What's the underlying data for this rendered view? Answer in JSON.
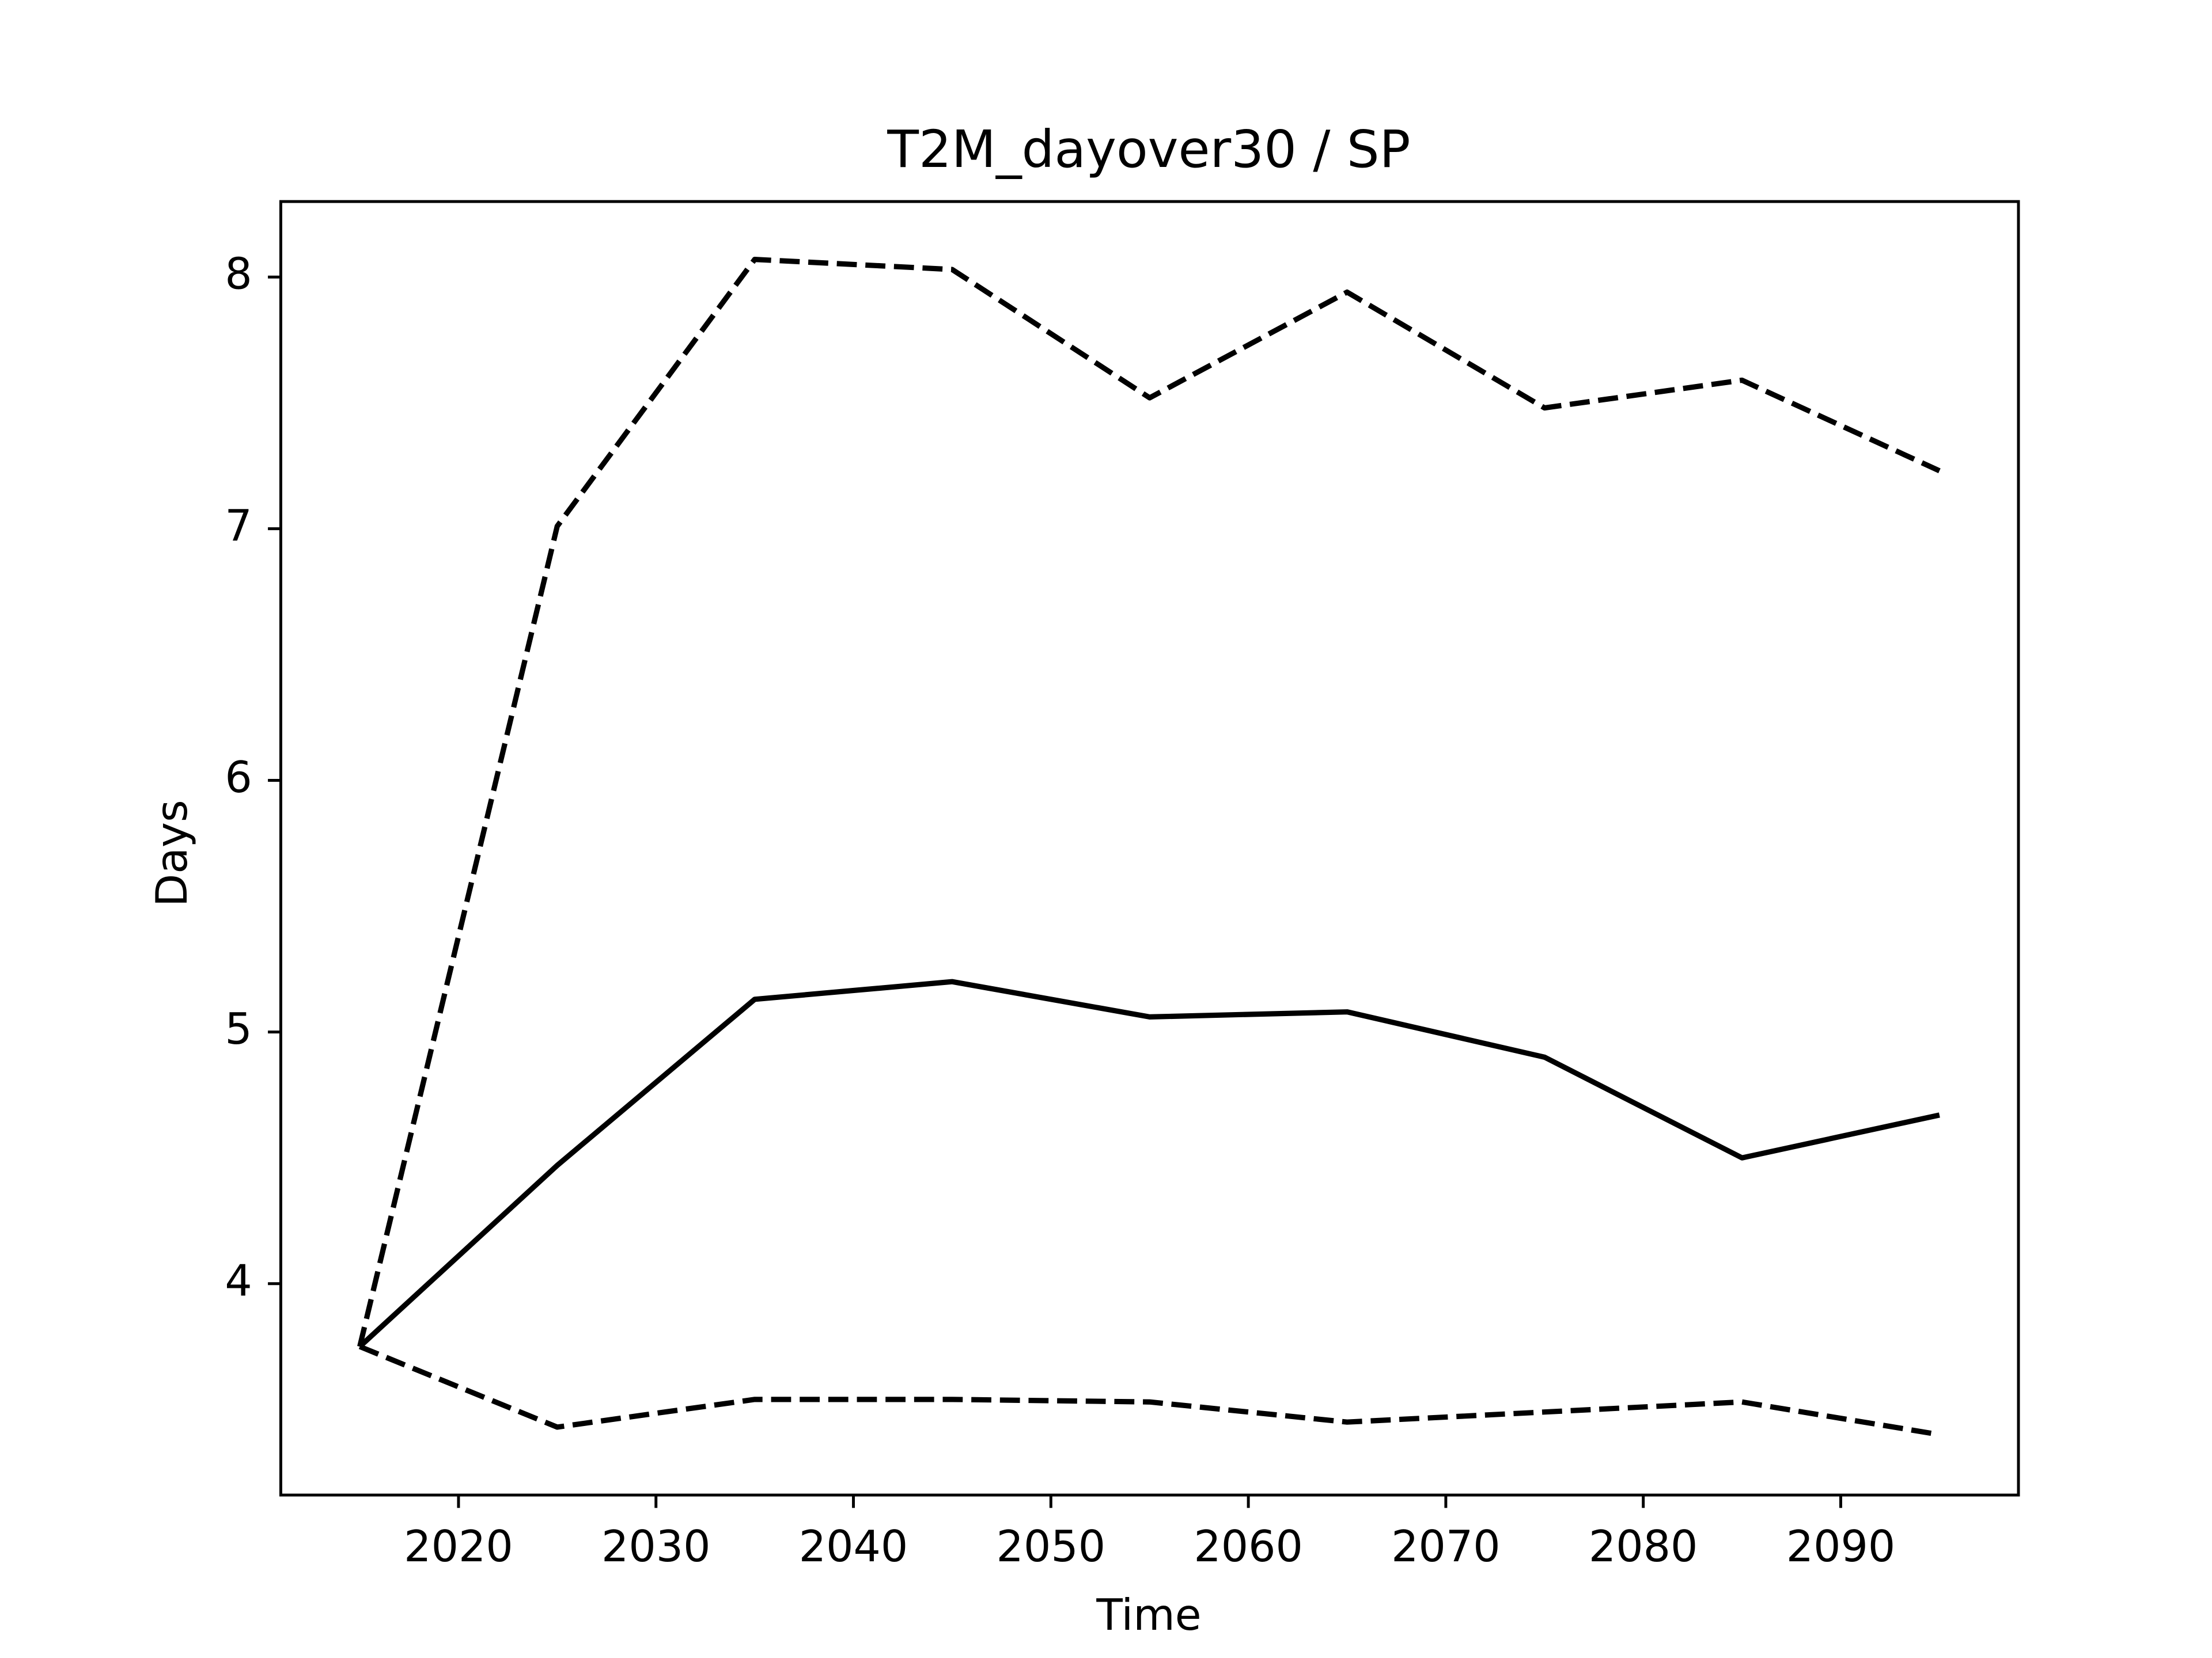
{
  "chart_data": {
    "type": "line",
    "title": "T2M_dayover30 / SP",
    "xlabel": "Time",
    "ylabel": "Days",
    "x": [
      2015,
      2025,
      2035,
      2045,
      2055,
      2065,
      2075,
      2085,
      2095
    ],
    "series": [
      {
        "color": "#000000",
        "dashed": false,
        "values": [
          3.75,
          4.47,
          5.13,
          5.2,
          5.06,
          5.08,
          4.9,
          4.5,
          4.67
        ]
      },
      {
        "color": "#000000",
        "dashed": true,
        "values": [
          3.75,
          7.01,
          8.07,
          8.03,
          7.52,
          7.94,
          7.48,
          7.59,
          7.23
        ]
      },
      {
        "color": "#000000",
        "dashed": true,
        "values": [
          3.75,
          3.43,
          3.54,
          3.54,
          3.53,
          3.45,
          3.49,
          3.53,
          3.4
        ]
      }
    ],
    "xlim": [
      2011,
      2099
    ],
    "ylim": [
      3.16,
      8.3
    ],
    "xticks": [
      2020,
      2030,
      2040,
      2050,
      2060,
      2070,
      2080,
      2090
    ],
    "yticks": [
      4,
      5,
      6,
      7,
      8
    ],
    "grid": false
  }
}
